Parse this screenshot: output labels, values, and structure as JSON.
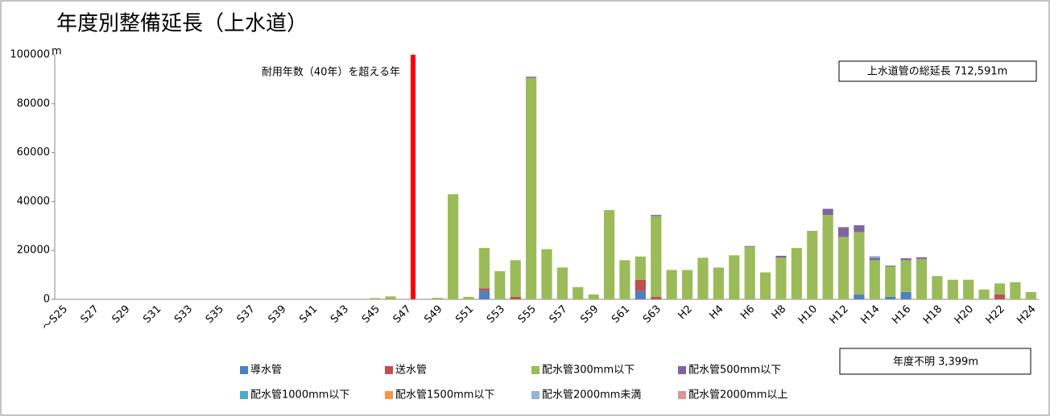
{
  "chart_data": {
    "type": "bar",
    "stacked": true,
    "title": "年度別整備延長（上水道）",
    "y_unit": "m",
    "annotations": [
      "耐用年数（40年）を超える年",
      "上水道管の総延長 712,591m",
      "年度不明 3,399m"
    ],
    "categories": [
      "～S25",
      null,
      "S27",
      null,
      "S29",
      null,
      "S31",
      null,
      "S33",
      null,
      "S35",
      null,
      "S37",
      null,
      "S39",
      null,
      "S41",
      null,
      "S43",
      null,
      "S45",
      null,
      "S47",
      null,
      "S49",
      null,
      "S51",
      null,
      "S53",
      null,
      "S55",
      null,
      "S57",
      null,
      "S59",
      null,
      "S61",
      null,
      "S63",
      null,
      "H2",
      null,
      "H4",
      null,
      "H6",
      null,
      "H8",
      null,
      "H10",
      null,
      "H12",
      null,
      "H14",
      null,
      "H16",
      null,
      "H18",
      null,
      "H20",
      null,
      "H22",
      null,
      "H24"
    ],
    "series": [
      {
        "name": "導水管",
        "color": "#4f81bd",
        "values": [
          0,
          0,
          0,
          0,
          0,
          0,
          0,
          0,
          0,
          0,
          0,
          0,
          0,
          0,
          0,
          0,
          0,
          0,
          0,
          0,
          0,
          0,
          0,
          0,
          0,
          0,
          0,
          3500,
          0,
          0,
          0,
          0,
          0,
          0,
          0,
          0,
          0,
          3500,
          0,
          0,
          0,
          0,
          0,
          0,
          0,
          0,
          0,
          0,
          0,
          0,
          0,
          2000,
          0,
          1000,
          3000,
          0,
          0,
          0,
          0,
          0,
          0,
          0,
          0
        ]
      },
      {
        "name": "送水管",
        "color": "#c0504d",
        "values": [
          0,
          0,
          0,
          0,
          0,
          0,
          0,
          0,
          0,
          0,
          0,
          0,
          0,
          0,
          0,
          0,
          0,
          0,
          0,
          0,
          0,
          0,
          0,
          0,
          0,
          0,
          0,
          1000,
          0,
          1000,
          0,
          0,
          0,
          0,
          0,
          0,
          0,
          4500,
          1000,
          0,
          0,
          0,
          0,
          0,
          0,
          0,
          0,
          0,
          0,
          0,
          0,
          0,
          0,
          0,
          0,
          0,
          0,
          0,
          0,
          0,
          2000,
          0,
          0
        ]
      },
      {
        "name": "配水管300mm以下",
        "color": "#9bbb59",
        "values": [
          0,
          0,
          0,
          0,
          0,
          0,
          0,
          0,
          0,
          0,
          0,
          0,
          0,
          0,
          0,
          0,
          0,
          0,
          0,
          0,
          500,
          1200,
          0,
          0,
          600,
          43000,
          1000,
          16500,
          11500,
          15000,
          90500,
          20500,
          13000,
          5000,
          2000,
          36500,
          16000,
          9500,
          33000,
          12000,
          12000,
          17000,
          13000,
          18000,
          21500,
          11000,
          17000,
          21000,
          28000,
          34500,
          25500,
          25500,
          16000,
          12500,
          13000,
          16500,
          9500,
          8000,
          8000,
          4000,
          4500,
          7000,
          3000
        ]
      },
      {
        "name": "配水管500mm以下",
        "color": "#8064a2",
        "values": [
          0,
          0,
          0,
          0,
          0,
          0,
          0,
          0,
          0,
          0,
          0,
          0,
          0,
          0,
          0,
          0,
          0,
          0,
          0,
          0,
          0,
          0,
          0,
          0,
          0,
          0,
          0,
          0,
          0,
          0,
          500,
          0,
          0,
          0,
          0,
          0,
          0,
          0,
          500,
          0,
          0,
          0,
          0,
          0,
          300,
          0,
          800,
          0,
          0,
          2500,
          4000,
          2800,
          1000,
          300,
          800,
          700,
          0,
          0,
          0,
          0,
          0,
          0,
          0
        ]
      },
      {
        "name": "配水管1000mm以下",
        "color": "#4bacc6",
        "values": [
          0,
          0,
          0,
          0,
          0,
          0,
          0,
          0,
          0,
          0,
          0,
          0,
          0,
          0,
          0,
          0,
          0,
          0,
          0,
          0,
          0,
          0,
          0,
          0,
          0,
          0,
          0,
          0,
          0,
          0,
          0,
          0,
          0,
          0,
          0,
          0,
          0,
          0,
          0,
          0,
          0,
          0,
          0,
          0,
          0,
          0,
          0,
          0,
          0,
          0,
          0,
          0,
          0,
          0,
          0,
          0,
          0,
          0,
          0,
          0,
          0,
          0,
          0
        ]
      },
      {
        "name": "配水管1500mm以下",
        "color": "#f79646",
        "values": [
          0,
          0,
          0,
          0,
          0,
          0,
          0,
          0,
          0,
          0,
          0,
          0,
          0,
          0,
          0,
          0,
          0,
          0,
          0,
          0,
          0,
          0,
          0,
          0,
          0,
          0,
          0,
          0,
          0,
          0,
          0,
          0,
          0,
          0,
          0,
          0,
          0,
          0,
          0,
          0,
          0,
          0,
          0,
          0,
          0,
          0,
          0,
          0,
          0,
          0,
          0,
          0,
          0,
          0,
          0,
          0,
          0,
          0,
          0,
          0,
          0,
          0,
          0
        ]
      },
      {
        "name": "配水管2000mm未満",
        "color": "#95b3d7",
        "values": [
          0,
          0,
          0,
          0,
          0,
          0,
          0,
          0,
          0,
          0,
          0,
          0,
          0,
          0,
          0,
          0,
          0,
          0,
          0,
          0,
          0,
          0,
          0,
          0,
          0,
          0,
          0,
          0,
          0,
          0,
          0,
          0,
          0,
          0,
          0,
          0,
          0,
          0,
          0,
          0,
          0,
          0,
          0,
          0,
          0,
          0,
          0,
          0,
          0,
          0,
          0,
          0,
          700,
          0,
          0,
          0,
          0,
          0,
          0,
          0,
          0,
          0,
          0
        ]
      },
      {
        "name": "配水管2000mm以上",
        "color": "#d99694",
        "values": [
          0,
          0,
          0,
          0,
          0,
          0,
          0,
          0,
          0,
          0,
          0,
          0,
          0,
          0,
          0,
          0,
          0,
          0,
          0,
          0,
          0,
          0,
          0,
          0,
          0,
          0,
          0,
          0,
          0,
          0,
          0,
          0,
          0,
          0,
          0,
          0,
          0,
          0,
          0,
          0,
          0,
          0,
          0,
          0,
          0,
          0,
          0,
          0,
          0,
          0,
          0,
          0,
          0,
          0,
          0,
          0,
          0,
          0,
          0,
          0,
          0,
          0,
          0
        ]
      }
    ],
    "ylim": [
      0,
      100000
    ],
    "yticks": [
      0,
      20000,
      40000,
      60000,
      80000,
      100000
    ],
    "grid": false,
    "legend": "bottom"
  }
}
